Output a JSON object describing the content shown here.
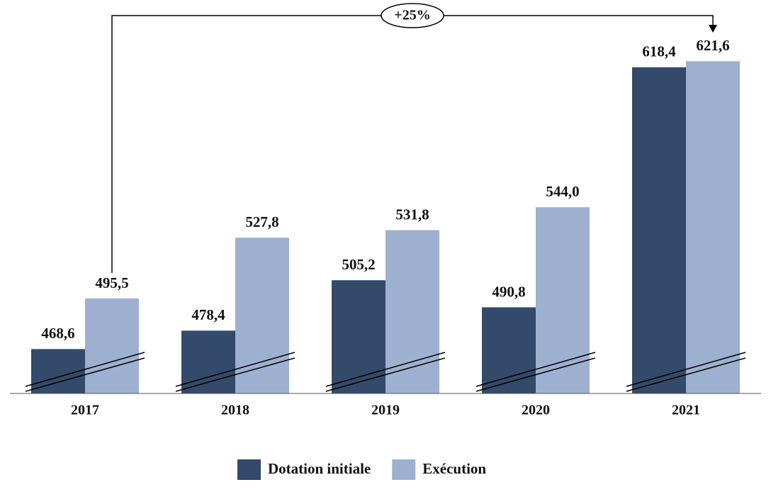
{
  "chart_data": {
    "type": "bar",
    "categories": [
      "2017",
      "2018",
      "2019",
      "2020",
      "2021"
    ],
    "series": [
      {
        "name": "Dotation initiale",
        "color": "#344a6a",
        "values": [
          468.6,
          478.4,
          505.2,
          490.8,
          618.4
        ],
        "value_labels": [
          "468,6",
          "478,4",
          "505,2",
          "490,8",
          "618,4"
        ]
      },
      {
        "name": "Exécution",
        "color": "#9db0cf",
        "values": [
          495.5,
          527.8,
          531.8,
          544.0,
          621.6
        ],
        "value_labels": [
          "495,5",
          "527,8",
          "531,8",
          "544,0",
          "621,6"
        ]
      }
    ],
    "ylim": [
      445,
      650
    ],
    "annotation": "+25%",
    "legend": "bottom"
  }
}
